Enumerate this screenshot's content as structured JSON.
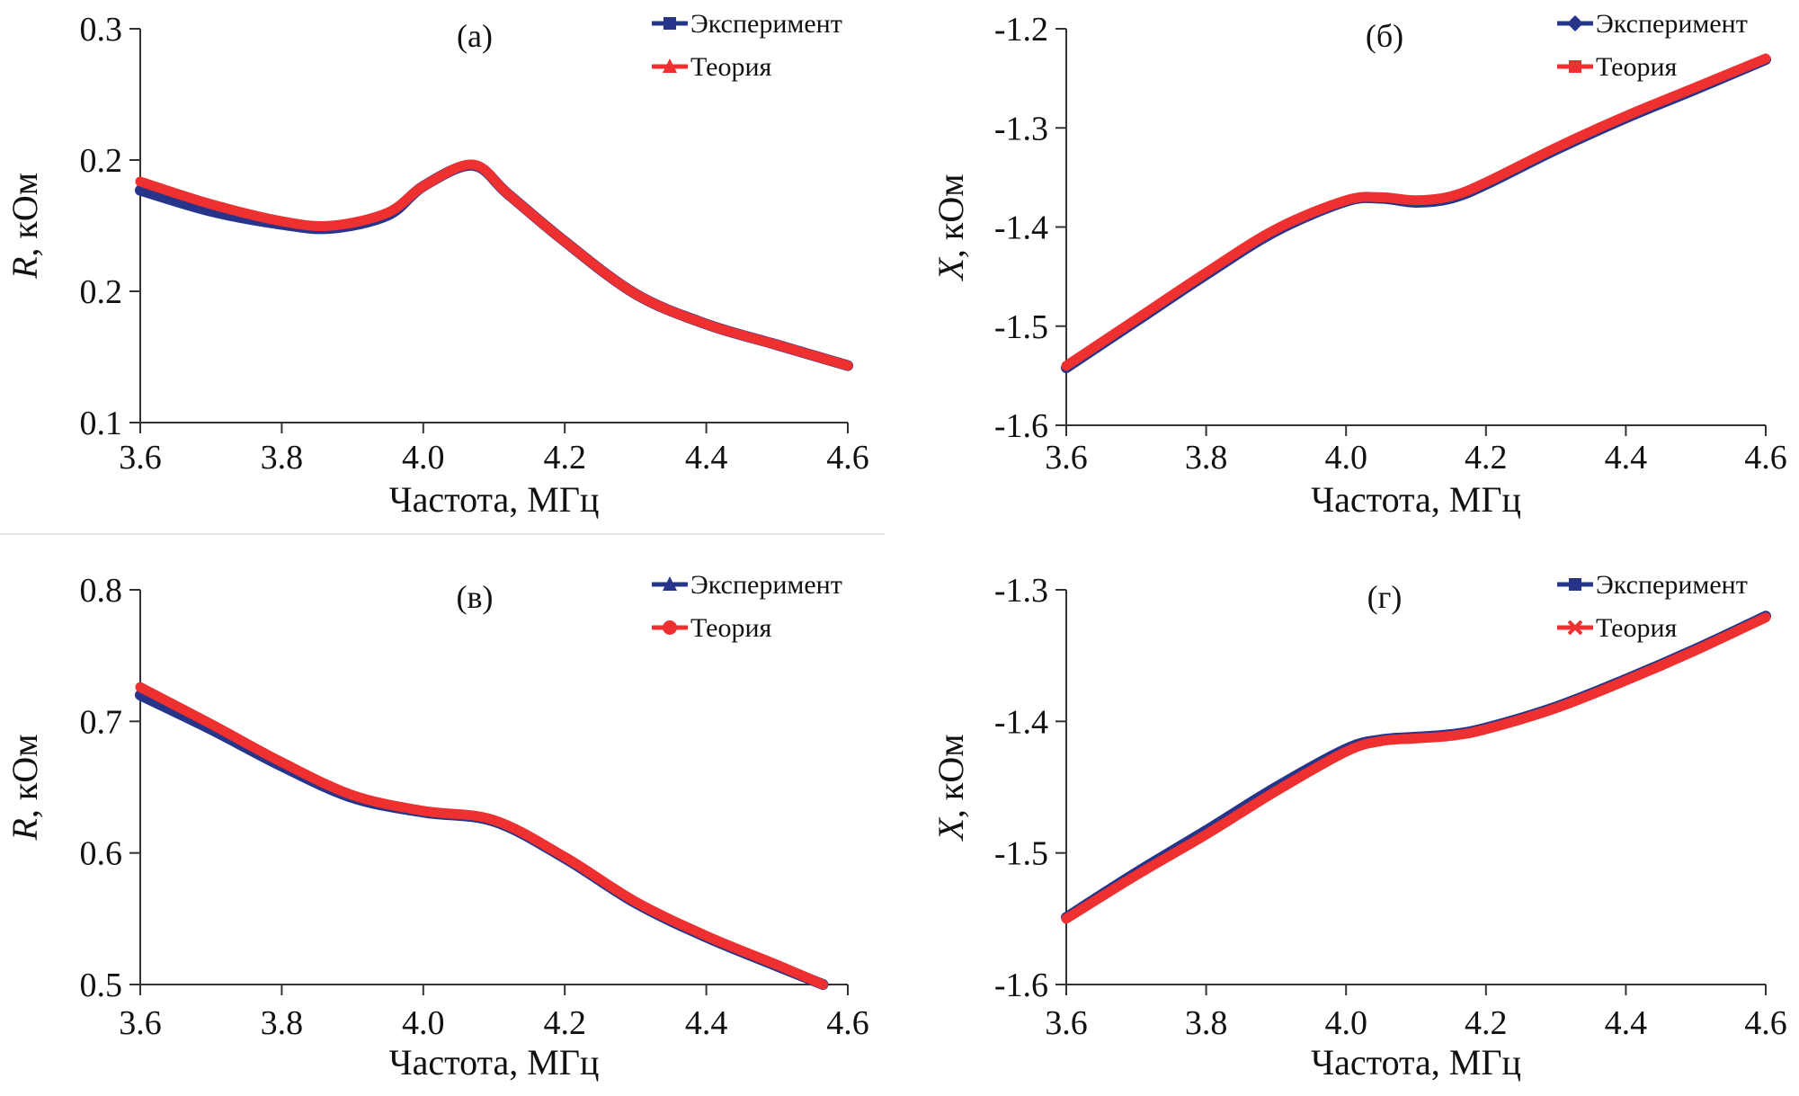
{
  "colors": {
    "experiment": "#26358a",
    "theory": "#ee3030",
    "axis": "#333333",
    "divider": "#e6e6e6"
  },
  "chart_data": [
    {
      "type": "line",
      "panel_label": "(а)",
      "xlabel": "Частота, МГц",
      "ylabel_var": "R",
      "ylabel_unit": ", кОм",
      "xlim": [
        3.6,
        4.6
      ],
      "xticks": [
        3.6,
        3.8,
        4.0,
        4.2,
        4.4,
        4.6
      ],
      "xtick_labels": [
        "3.6",
        "3.8",
        "4.0",
        "4.2",
        "4.4",
        "4.6"
      ],
      "ylim": [
        0.1,
        0.25
      ],
      "yticks": [
        0.1,
        0.15,
        0.2,
        0.25
      ],
      "ytick_labels": [
        "0.1",
        "0.2",
        "0.2",
        "0.3"
      ],
      "legend": "top-right",
      "x": [
        3.6,
        3.7,
        3.8,
        3.87,
        3.95,
        4.0,
        4.07,
        4.12,
        4.2,
        4.3,
        4.4,
        4.5,
        4.6
      ],
      "series": [
        {
          "name": "Эксперимент",
          "marker": "square",
          "values": [
            0.1885,
            0.1805,
            0.1755,
            0.174,
            0.179,
            0.19,
            0.198,
            0.187,
            0.169,
            0.149,
            0.1375,
            0.1296,
            0.1217
          ]
        },
        {
          "name": "Теория",
          "marker": "triangle",
          "values": [
            0.1918,
            0.1832,
            0.1767,
            0.175,
            0.18,
            0.19,
            0.1983,
            0.187,
            0.169,
            0.149,
            0.1375,
            0.1296,
            0.1217
          ]
        }
      ]
    },
    {
      "type": "line",
      "panel_label": "(б)",
      "xlabel": "Частота, МГц",
      "ylabel_var": "X",
      "ylabel_unit": ", кОм",
      "xlim": [
        3.6,
        4.6
      ],
      "xticks": [
        3.6,
        3.8,
        4.0,
        4.2,
        4.4,
        4.6
      ],
      "xtick_labels": [
        "3.6",
        "3.8",
        "4.0",
        "4.2",
        "4.4",
        "4.6"
      ],
      "ylim": [
        -1.6,
        -1.2
      ],
      "yticks": [
        -1.6,
        -1.5,
        -1.4,
        -1.3,
        -1.2
      ],
      "ytick_labels": [
        "-1.6",
        "-1.5",
        "-1.4",
        "-1.3",
        "-1.2"
      ],
      "legend": "top-right",
      "x": [
        3.6,
        3.7,
        3.8,
        3.9,
        4.0,
        4.05,
        4.1,
        4.15,
        4.2,
        4.3,
        4.4,
        4.5,
        4.6
      ],
      "series": [
        {
          "name": "Эксперимент",
          "marker": "diamond",
          "values": [
            -1.542,
            -1.495,
            -1.448,
            -1.404,
            -1.374,
            -1.371,
            -1.375,
            -1.371,
            -1.357,
            -1.322,
            -1.29,
            -1.261,
            -1.231
          ]
        },
        {
          "name": "Теория",
          "marker": "square",
          "values": [
            -1.54,
            -1.493,
            -1.446,
            -1.402,
            -1.373,
            -1.37,
            -1.373,
            -1.369,
            -1.355,
            -1.32,
            -1.288,
            -1.259,
            -1.23
          ]
        }
      ]
    },
    {
      "type": "line",
      "panel_label": "(в)",
      "xlabel": "Частота, МГц",
      "ylabel_var": "R",
      "ylabel_unit": ", кОм",
      "xlim": [
        3.6,
        4.6
      ],
      "xticks": [
        3.6,
        3.8,
        4.0,
        4.2,
        4.4,
        4.6
      ],
      "xtick_labels": [
        "3.6",
        "3.8",
        "4.0",
        "4.2",
        "4.4",
        "4.6"
      ],
      "ylim": [
        0.5,
        0.8
      ],
      "yticks": [
        0.5,
        0.6,
        0.7,
        0.8
      ],
      "ytick_labels": [
        "0.5",
        "0.6",
        "0.7",
        "0.8"
      ],
      "legend": "top-right",
      "x": [
        3.6,
        3.7,
        3.8,
        3.9,
        4.0,
        4.1,
        4.2,
        4.3,
        4.4,
        4.5,
        4.565
      ],
      "series": [
        {
          "name": "Эксперимент",
          "marker": "triangle",
          "values": [
            0.72,
            0.694,
            0.666,
            0.642,
            0.631,
            0.624,
            0.596,
            0.562,
            0.536,
            0.514,
            0.5
          ]
        },
        {
          "name": "Теория",
          "marker": "circle",
          "values": [
            0.726,
            0.698,
            0.669,
            0.644,
            0.632,
            0.625,
            0.597,
            0.563,
            0.537,
            0.515,
            0.5
          ]
        }
      ]
    },
    {
      "type": "line",
      "panel_label": "(г)",
      "xlabel": "Частота, МГц",
      "ylabel_var": "X",
      "ylabel_unit": ", кОм",
      "xlim": [
        3.6,
        4.6
      ],
      "xticks": [
        3.6,
        3.8,
        4.0,
        4.2,
        4.4,
        4.6
      ],
      "xtick_labels": [
        "3.6",
        "3.8",
        "4.0",
        "4.2",
        "4.4",
        "4.6"
      ],
      "ylim": [
        -1.6,
        -1.3
      ],
      "yticks": [
        -1.6,
        -1.5,
        -1.4,
        -1.3
      ],
      "ytick_labels": [
        "-1.6",
        "-1.5",
        "-1.4",
        "-1.3"
      ],
      "legend": "top-right",
      "x": [
        3.6,
        3.7,
        3.8,
        3.9,
        4.0,
        4.05,
        4.1,
        4.15,
        4.2,
        4.3,
        4.4,
        4.5,
        4.6
      ],
      "series": [
        {
          "name": "Эксперимент",
          "marker": "square",
          "values": [
            -1.549,
            -1.515,
            -1.483,
            -1.45,
            -1.421,
            -1.414,
            -1.412,
            -1.41,
            -1.405,
            -1.389,
            -1.368,
            -1.345,
            -1.32
          ]
        },
        {
          "name": "Теория",
          "marker": "star",
          "values": [
            -1.55,
            -1.517,
            -1.486,
            -1.453,
            -1.423,
            -1.415,
            -1.413,
            -1.411,
            -1.406,
            -1.39,
            -1.369,
            -1.346,
            -1.321
          ]
        }
      ]
    }
  ]
}
